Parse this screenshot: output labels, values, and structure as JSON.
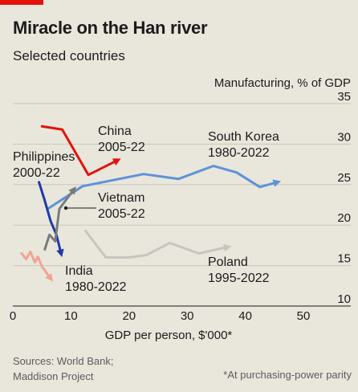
{
  "header": {
    "title": "Miracle on the Han river",
    "subtitle": "Selected countries"
  },
  "footer": {
    "sources_line1": "Sources: World Bank;",
    "sources_line2": "Maddison Project",
    "footnote": "*At purchasing-power parity"
  },
  "colors": {
    "background": "#e9e6dc",
    "china": "#e3120b",
    "south_korea": "#5d93d8",
    "philippines": "#1f3aa6",
    "vietnam": "#7b7b7b",
    "india": "#f0a494",
    "poland": "#c7c5c0",
    "brand": "#e3120b"
  },
  "chart_data": {
    "type": "line",
    "title": "Miracle on the Han river",
    "subtitle": "Selected countries",
    "xlabel": "GDP per person, $'000*",
    "ylabel": "Manufacturing, % of GDP",
    "xlim": [
      0,
      50
    ],
    "ylim": [
      10,
      35
    ],
    "xticks": [
      0,
      10,
      20,
      30,
      40,
      50
    ],
    "yticks": [
      10,
      15,
      20,
      25,
      30,
      35
    ],
    "grid": "horizontal",
    "series": [
      {
        "name": "China",
        "period": "2005-22",
        "color_key": "china",
        "x": [
          5.0,
          8.5,
          13.0,
          18.0
        ],
        "y": [
          32.2,
          31.8,
          26.2,
          28.0
        ]
      },
      {
        "name": "South Korea",
        "period": "1980-2022",
        "color_key": "south_korea",
        "x": [
          6.0,
          12.0,
          22.5,
          28.5,
          34.5,
          38.5,
          42.5,
          45.5
        ],
        "y": [
          22.0,
          24.8,
          26.3,
          25.7,
          27.3,
          26.5,
          24.7,
          25.3
        ]
      },
      {
        "name": "Philippines",
        "period": "2000-22",
        "color_key": "philippines",
        "x": [
          4.5,
          5.5,
          6.5,
          7.5,
          8.3
        ],
        "y": [
          25.3,
          23.0,
          20.5,
          18.8,
          16.5
        ]
      },
      {
        "name": "Vietnam",
        "period": "2005-22",
        "color_key": "vietnam",
        "x": [
          5.5,
          6.3,
          7.3,
          8.0,
          10.5
        ],
        "y": [
          17.0,
          18.8,
          18.0,
          22.0,
          24.4
        ]
      },
      {
        "name": "India",
        "period": "1980-2022",
        "color_key": "india",
        "x": [
          1.5,
          2.3,
          3.0,
          3.8,
          4.3,
          5.0,
          6.5
        ],
        "y": [
          16.5,
          15.8,
          16.7,
          15.4,
          16.1,
          14.9,
          13.4
        ]
      },
      {
        "name": "Poland",
        "period": "1995-2022",
        "color_key": "poland",
        "x": [
          12.5,
          16.0,
          20.0,
          23.0,
          27.0,
          32.0,
          37.0
        ],
        "y": [
          19.3,
          16.0,
          16.0,
          16.3,
          17.8,
          16.5,
          17.3
        ]
      }
    ],
    "labels": [
      {
        "series": "China",
        "name": "China",
        "period": "2005-22"
      },
      {
        "series": "South Korea",
        "name": "South Korea",
        "period": "1980-2022"
      },
      {
        "series": "Philippines",
        "name": "Philippines",
        "period": "2000-22"
      },
      {
        "series": "Vietnam",
        "name": "Vietnam",
        "period": "2005-22"
      },
      {
        "series": "India",
        "name": "India",
        "period": "1980-2022"
      },
      {
        "series": "Poland",
        "name": "Poland",
        "period": "1995-2022"
      }
    ]
  }
}
